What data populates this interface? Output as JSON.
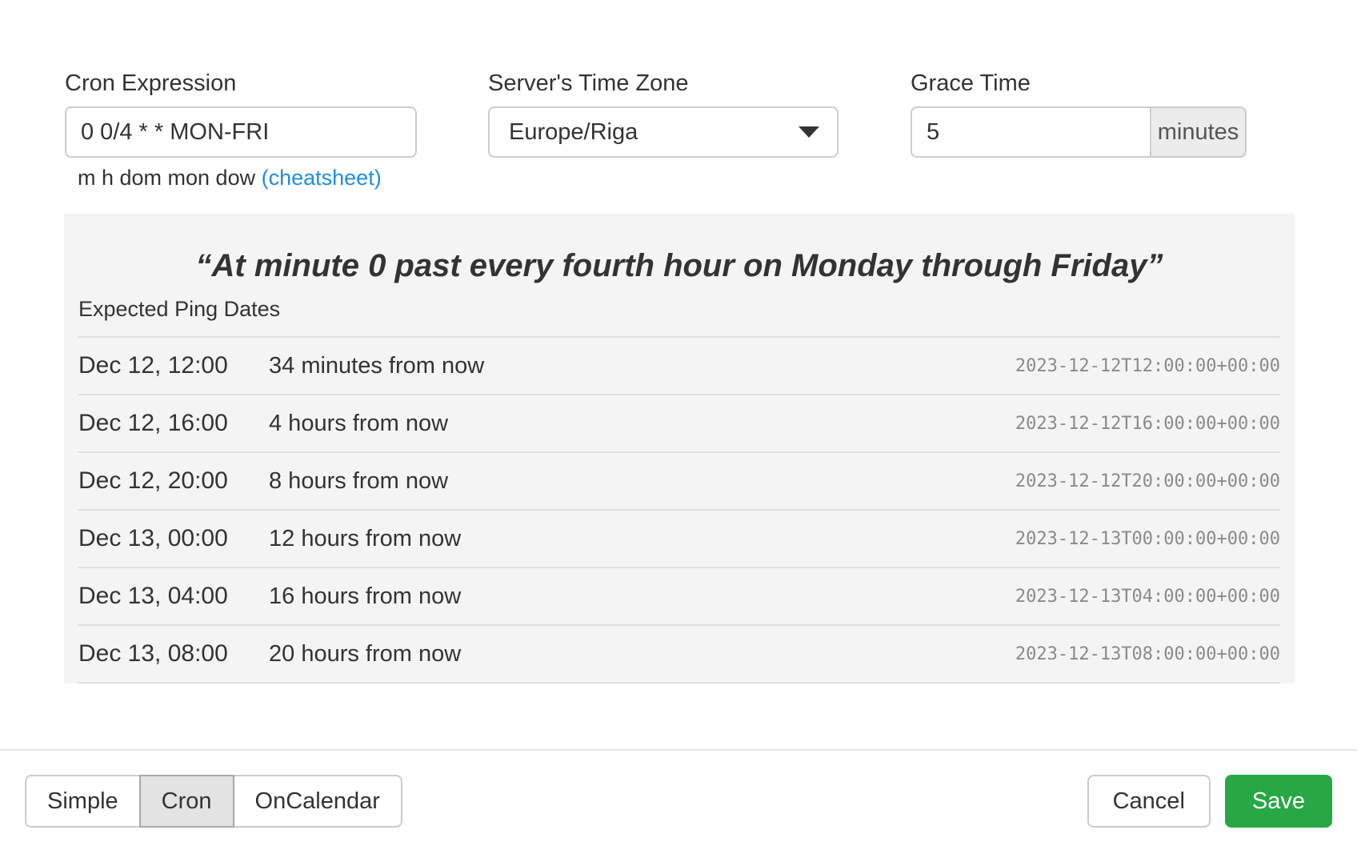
{
  "form": {
    "cron": {
      "label": "Cron Expression",
      "value": "0 0/4 * * MON-FRI",
      "hint": "m h dom mon dow",
      "hint_link": "(cheatsheet)"
    },
    "timezone": {
      "label": "Server's Time Zone",
      "value": "Europe/Riga"
    },
    "grace": {
      "label": "Grace Time",
      "value": "5",
      "unit": "minutes"
    }
  },
  "preview": {
    "description": "“At minute 0 past every fourth hour on Monday through Friday”",
    "ping_dates_label": "Expected Ping Dates",
    "rows": [
      {
        "date": "Dec 12, 12:00",
        "relative": "34 minutes from now",
        "iso": "2023-12-12T12:00:00+00:00"
      },
      {
        "date": "Dec 12, 16:00",
        "relative": "4 hours from now",
        "iso": "2023-12-12T16:00:00+00:00"
      },
      {
        "date": "Dec 12, 20:00",
        "relative": "8 hours from now",
        "iso": "2023-12-12T20:00:00+00:00"
      },
      {
        "date": "Dec 13, 00:00",
        "relative": "12 hours from now",
        "iso": "2023-12-13T00:00:00+00:00"
      },
      {
        "date": "Dec 13, 04:00",
        "relative": "16 hours from now",
        "iso": "2023-12-13T04:00:00+00:00"
      },
      {
        "date": "Dec 13, 08:00",
        "relative": "20 hours from now",
        "iso": "2023-12-13T08:00:00+00:00"
      }
    ]
  },
  "footer": {
    "modes": [
      {
        "label": "Simple"
      },
      {
        "label": "Cron"
      },
      {
        "label": "OnCalendar"
      }
    ],
    "active_mode": "Cron",
    "cancel_label": "Cancel",
    "save_label": "Save"
  },
  "colors": {
    "save_green": "#28a745",
    "link_blue": "#1d8fe1",
    "panel_bg": "#f4f4f4",
    "row_border": "#e0e0e0",
    "timestamp_gray": "#8a8a8a"
  }
}
